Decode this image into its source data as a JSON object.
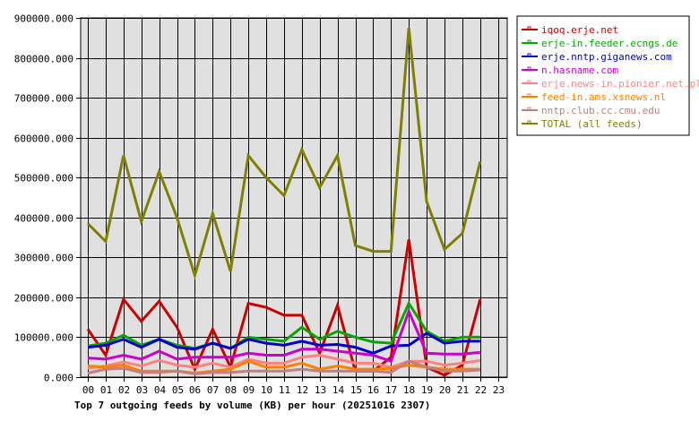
{
  "chart_data": {
    "type": "line",
    "title": "Top 7 outgoing feeds by volume (KB) per hour (20251016 2307)",
    "xlabel": "",
    "ylabel": "",
    "ylim": [
      0,
      900000
    ],
    "grid": true,
    "legend_position": "right",
    "x": [
      "00",
      "01",
      "02",
      "03",
      "04",
      "05",
      "06",
      "07",
      "08",
      "09",
      "10",
      "11",
      "12",
      "13",
      "14",
      "15",
      "16",
      "17",
      "18",
      "19",
      "20",
      "21",
      "22",
      "23"
    ],
    "y_ticks": [
      "0.000",
      "100000.000",
      "200000.000",
      "300000.000",
      "400000.000",
      "500000.000",
      "600000.000",
      "700000.000",
      "800000.000",
      "900000.000"
    ],
    "series": [
      {
        "name": "iqoq.erje.net",
        "color": "#cc0000",
        "values": [
          120000,
          55000,
          195000,
          140000,
          190000,
          125000,
          20000,
          120000,
          25000,
          185000,
          175000,
          155000,
          155000,
          60000,
          180000,
          15000,
          15000,
          50000,
          345000,
          25000,
          5000,
          30000,
          195000
        ]
      },
      {
        "name": "erje-in.feeder.ecngs.de",
        "color": "#00aa00",
        "values": [
          78000,
          85000,
          105000,
          80000,
          95000,
          80000,
          72000,
          85000,
          72000,
          100000,
          95000,
          90000,
          125000,
          95000,
          115000,
          100000,
          88000,
          85000,
          185000,
          115000,
          90000,
          100000,
          100000
        ]
      },
      {
        "name": "erje.nntp.giganews.com",
        "color": "#0000cc",
        "values": [
          75000,
          80000,
          95000,
          75000,
          95000,
          75000,
          70000,
          85000,
          72000,
          95000,
          85000,
          80000,
          90000,
          80000,
          82000,
          75000,
          60000,
          78000,
          80000,
          110000,
          85000,
          90000,
          90000
        ]
      },
      {
        "name": "n.hasname.com",
        "color": "#cc00cc",
        "values": [
          48000,
          45000,
          55000,
          45000,
          65000,
          45000,
          50000,
          50000,
          50000,
          60000,
          55000,
          55000,
          70000,
          70000,
          65000,
          60000,
          55000,
          40000,
          165000,
          60000,
          58000,
          58000,
          62000
        ]
      },
      {
        "name": "erje.news-in.pionier.net.pl",
        "color": "#ff8080",
        "values": [
          22000,
          28000,
          38000,
          28000,
          42000,
          30000,
          25000,
          35000,
          25000,
          45000,
          35000,
          35000,
          50000,
          55000,
          45000,
          35000,
          35000,
          25000,
          40000,
          40000,
          30000,
          35000,
          42000
        ]
      },
      {
        "name": "feed-in.ams.xsnews.nl",
        "color": "#ff8000",
        "values": [
          28000,
          25000,
          30000,
          15000,
          15000,
          15000,
          10000,
          15000,
          20000,
          40000,
          25000,
          25000,
          35000,
          20000,
          28000,
          20000,
          20000,
          22000,
          30000,
          25000,
          20000,
          20000,
          20000
        ]
      },
      {
        "name": "nntp.club.cc.cmu.edu",
        "color": "#c08080",
        "values": [
          10000,
          20000,
          22000,
          12000,
          12000,
          15000,
          8000,
          12000,
          12000,
          15000,
          15000,
          15000,
          20000,
          15000,
          15000,
          15000,
          15000,
          12000,
          40000,
          25000,
          15000,
          15000,
          18000
        ]
      },
      {
        "name": "TOTAL (all feeds)",
        "color": "#808000",
        "values": [
          385000,
          340000,
          555000,
          390000,
          515000,
          400000,
          255000,
          410000,
          265000,
          555000,
          500000,
          455000,
          570000,
          475000,
          555000,
          330000,
          315000,
          315000,
          875000,
          440000,
          320000,
          360000,
          540000
        ]
      }
    ]
  },
  "colors": {
    "plot_background": "#e0e0e0",
    "grid": "#000000",
    "page_background": "#ffffff"
  }
}
